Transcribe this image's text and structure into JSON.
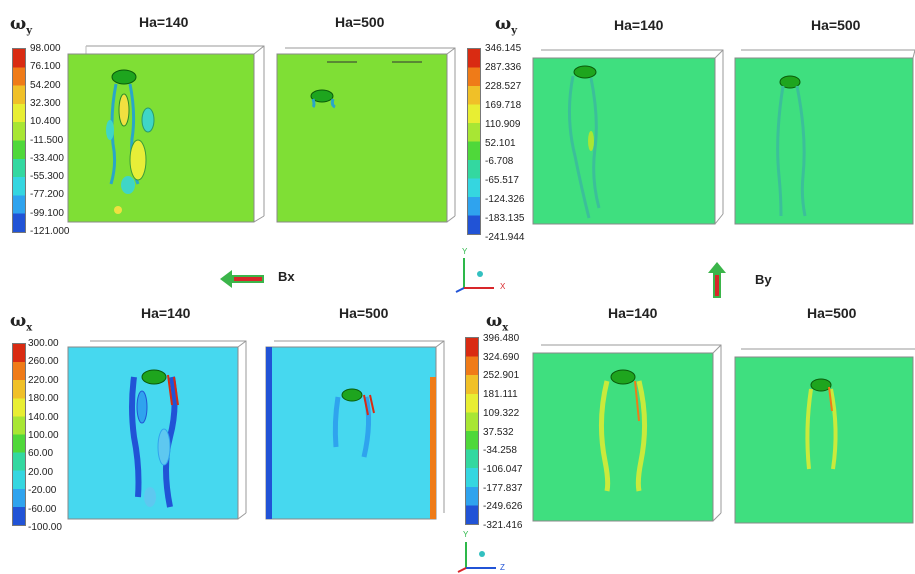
{
  "figure": {
    "quadrants": [
      {
        "id": "tl",
        "omega": "ω",
        "omega_sub": "y",
        "left_title": "Ha=140",
        "right_title": "Ha=500",
        "bg": "#7fdf35",
        "cmap": "#d92b12,#ef7b18,#f0c028,#e8ee33,#a8e634,#4fd83a,#33d8a0,#35d6e0,#2fa3ee,#2153d6",
        "ticks": [
          "98.000",
          "76.100",
          "54.200",
          "32.300",
          "10.400",
          "-11.500",
          "-33.400",
          "-55.300",
          "-77.200",
          "-99.100",
          "-121.000"
        ]
      },
      {
        "id": "tr",
        "omega": "ω",
        "omega_sub": "y",
        "left_title": "Ha=140",
        "right_title": "Ha=500",
        "bg": "#3fdf7f",
        "cmap": "#d92b12,#ef7b18,#f0c028,#e8ee33,#a8e634,#4fd83a,#33d8a0,#35d6e0,#2fa3ee,#2153d6",
        "ticks": [
          "346.145",
          "287.336",
          "228.527",
          "169.718",
          "110.909",
          "52.101",
          "-6.708",
          "-65.517",
          "-124.326",
          "-183.135",
          "-241.944"
        ]
      },
      {
        "id": "bl",
        "omega": "ω",
        "omega_sub": "x",
        "left_title": "Ha=140",
        "right_title": "Ha=500",
        "bg": "#46d8ef",
        "cmap": "#d92b12,#ef7b18,#f0c028,#e8ee33,#a8e634,#4fd83a,#33d8a0,#35d6e0,#2fa3ee,#2153d6",
        "ticks": [
          "300.00",
          "260.00",
          "220.00",
          "180.00",
          "140.00",
          "100.00",
          "60.00",
          "20.00",
          "-20.00",
          "-60.00",
          "-100.00"
        ]
      },
      {
        "id": "br",
        "omega": "ω",
        "omega_sub": "x",
        "left_title": "Ha=140",
        "right_title": "Ha=500",
        "bg": "#3fdf7f",
        "cmap": "#d92b12,#ef7b18,#f0c028,#e8ee33,#a8e634,#4fd83a,#33d8a0,#35d6e0,#2fa3ee,#2153d6",
        "ticks": [
          "396.480",
          "324.690",
          "252.901",
          "181.111",
          "109.322",
          "37.532",
          "-34.258",
          "-106.047",
          "-177.837",
          "-249.626",
          "-321.416"
        ]
      }
    ],
    "field_left_label": "Bx",
    "field_right_label": "By",
    "axis_top": {
      "v": "Y",
      "h": "X"
    },
    "axis_bottom": {
      "v": "Y",
      "h": "Z"
    },
    "colors": {
      "arrow_green": "#3bb54a",
      "arrow_red": "#d8262a"
    }
  }
}
